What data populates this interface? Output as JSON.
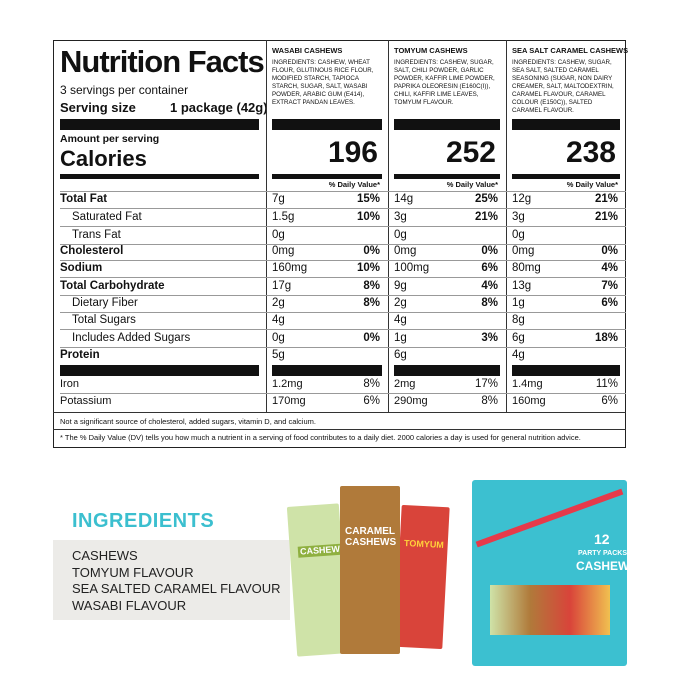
{
  "label": {
    "title": "Nutrition Facts",
    "servings": "3 servings per container",
    "serving_size_label": "Serving size",
    "serving_size_value": "1 package (42g)",
    "amount_per_serving": "Amount per serving",
    "calories_label": "Calories",
    "daily_value_header": "% Daily Value*"
  },
  "nutrients": [
    {
      "name": "Total Fat",
      "bold": true,
      "indent": false
    },
    {
      "name": "Saturated Fat",
      "bold": false,
      "indent": true
    },
    {
      "name": "Trans Fat",
      "bold": false,
      "indent": true
    },
    {
      "name": "Cholesterol",
      "bold": true,
      "indent": false
    },
    {
      "name": "Sodium",
      "bold": true,
      "indent": false
    },
    {
      "name": "Total Carbohydrate",
      "bold": true,
      "indent": false
    },
    {
      "name": "Dietary Fiber",
      "bold": false,
      "indent": true
    },
    {
      "name": "Total Sugars",
      "bold": false,
      "indent": true
    },
    {
      "name": "Includes Added Sugars",
      "bold": false,
      "indent": true
    },
    {
      "name": "Protein",
      "bold": true,
      "indent": false
    },
    {
      "name": "Iron",
      "bold": false,
      "indent": false
    },
    {
      "name": "Potassium",
      "bold": false,
      "indent": false
    }
  ],
  "products": [
    {
      "name": "WASABI CASHEWS",
      "ingredients": "INGREDIENTS: CASHEW, WHEAT FLOUR, GLUTINOUS RICE FLOUR, MODIFIED STARCH, TAPIOCA STARCH, SUGAR, SALT, WASABI POWDER, ARABIC GUM (E414), EXTRACT PANDAN LEAVES.",
      "calories": 196,
      "values": [
        [
          "7g",
          "15%"
        ],
        [
          "1.5g",
          "10%"
        ],
        [
          "0g",
          null
        ],
        [
          "0mg",
          "0%"
        ],
        [
          "160mg",
          "10%"
        ],
        [
          "17g",
          "8%"
        ],
        [
          "2g",
          "8%"
        ],
        [
          "4g",
          null
        ],
        [
          "0g",
          "0%"
        ],
        [
          "5g",
          null
        ],
        [
          "1.2mg",
          "8%"
        ],
        [
          "170mg",
          "6%"
        ]
      ]
    },
    {
      "name": "TOMYUM CASHEWS",
      "ingredients": "INGREDIENTS: CASHEW, SUGAR, SALT, CHILI POWDER, GARLIC POWDER, KAFFIR LIME POWDER, PAPRIKA OLEORESIN (E160C(I)), CHILI, KAFFIR LIME LEAVES, TOMYUM FLAVOUR.",
      "calories": 252,
      "values": [
        [
          "14g",
          "25%"
        ],
        [
          "3g",
          "21%"
        ],
        [
          "0g",
          null
        ],
        [
          "0mg",
          "0%"
        ],
        [
          "100mg",
          "6%"
        ],
        [
          "9g",
          "4%"
        ],
        [
          "2g",
          "8%"
        ],
        [
          "4g",
          null
        ],
        [
          "1g",
          "3%"
        ],
        [
          "6g",
          null
        ],
        [
          "2mg",
          "17%"
        ],
        [
          "290mg",
          "8%"
        ]
      ]
    },
    {
      "name": "SEA SALT CARAMEL CASHEWS",
      "ingredients": "INGREDIENTS: CASHEW, SUGAR, SEA SALT, SALTED CARAMEL SEASONING (SUGAR, NON DAIRY CREAMER, SALT, MALTODEXTRIN, CARAMEL FLAVOUR, CARAMEL COLOUR (E150C)), SALTED CARAMEL FLAVOUR.",
      "calories": 238,
      "values": [
        [
          "12g",
          "21%"
        ],
        [
          "3g",
          "21%"
        ],
        [
          "0g",
          null
        ],
        [
          "0mg",
          "0%"
        ],
        [
          "80mg",
          "4%"
        ],
        [
          "13g",
          "7%"
        ],
        [
          "1g",
          "6%"
        ],
        [
          "8g",
          null
        ],
        [
          "6g",
          "18%"
        ],
        [
          "4g",
          null
        ],
        [
          "1.4mg",
          "11%"
        ],
        [
          "160mg",
          "6%"
        ]
      ]
    }
  ],
  "footnotes": [
    "Not a significant source of cholesterol, added sugars, vitamin D, and calcium.",
    "* The % Daily Value (DV) tells you how much a nutrient in a serving of food contributes to a daily diet. 2000 calories a day is used for  general nutrition advice."
  ],
  "ingredients_section": {
    "title": "INGREDIENTS",
    "items": [
      "CASHEWS",
      "TOMYUM FLAVOUR",
      "SEA SALTED CARAMEL FLAVOUR",
      "WASABI FLAVOUR"
    ]
  },
  "packages": {
    "wasabi": "CASHEWS",
    "caramel": "CARAMEL CASHEWS",
    "tomyum": "TOMYUM",
    "box_count": "12",
    "box_label": "PARTY PACKS",
    "box_product": "CASHEW"
  }
}
